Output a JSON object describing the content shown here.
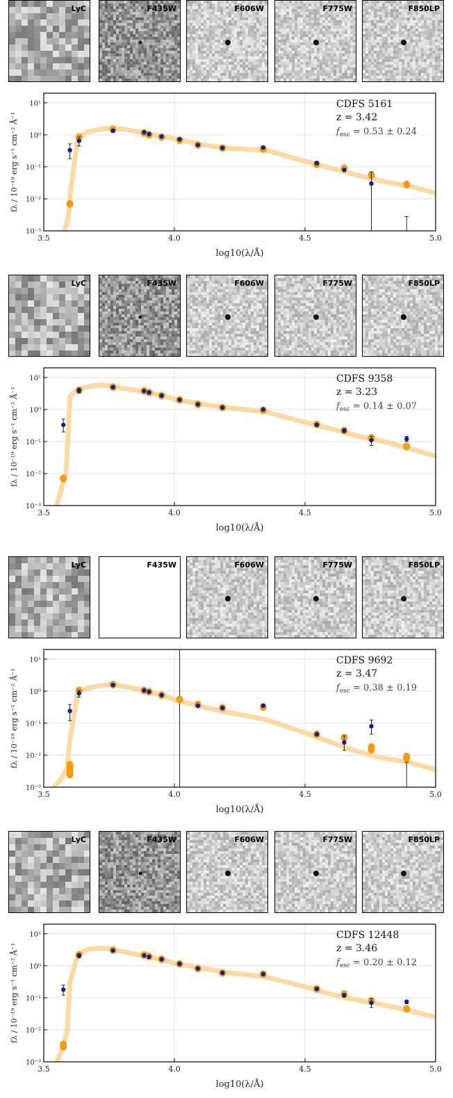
{
  "chart_data": [
    {
      "type": "scatter",
      "stamps": [
        "LyC",
        "F435W",
        "F606W",
        "F775W",
        "F850LP"
      ],
      "blank_stamps": [],
      "annotation": {
        "name": "CDFS 5161",
        "z": "z = 3.42",
        "fesc": "0.53 ± 0.24"
      },
      "xlabel": "log10(λ/Å)",
      "ylabel": "fλ / 10⁻¹⁹ erg s⁻¹ cm⁻² Å⁻¹",
      "xlim": [
        3.5,
        5.0
      ],
      "ylim_log10": [
        -3,
        1.3
      ],
      "x_ticks": [
        "3.5",
        "4.0",
        "4.5",
        "5.0"
      ],
      "y_ticks": [
        "10⁻³",
        "10⁻²",
        "10⁻¹",
        "10⁰",
        "10¹"
      ],
      "grid": true,
      "model": {
        "x": [
          3.58,
          3.595,
          3.6,
          3.63,
          3.67,
          3.72,
          3.76,
          3.85,
          3.95,
          4.0,
          4.1,
          4.2,
          4.35,
          4.5,
          4.6,
          4.7,
          4.8,
          4.9,
          5.0
        ],
        "y": [
          0.001,
          0.003,
          0.012,
          0.8,
          1.25,
          1.5,
          1.7,
          1.3,
          0.9,
          0.75,
          0.5,
          0.38,
          0.33,
          0.15,
          0.09,
          0.055,
          0.035,
          0.025,
          0.015
        ]
      },
      "model_photometry": {
        "x": [
          3.6,
          3.635,
          3.765,
          3.884,
          3.903,
          3.951,
          4.02,
          4.09,
          4.184,
          4.34,
          4.545,
          4.65,
          4.754,
          4.889
        ],
        "y": [
          0.007,
          0.85,
          1.45,
          1.15,
          1.0,
          0.85,
          0.68,
          0.48,
          0.39,
          0.36,
          0.12,
          0.09,
          0.055,
          0.028
        ]
      },
      "observed": {
        "x": [
          3.6,
          3.635,
          3.765,
          3.884,
          3.903,
          3.951,
          4.02,
          4.09,
          4.184,
          4.34,
          4.545,
          4.65,
          4.754
        ],
        "y": [
          0.33,
          0.65,
          1.35,
          1.2,
          1.05,
          0.88,
          0.72,
          0.48,
          0.39,
          0.4,
          0.13,
          0.08,
          0.03
        ],
        "err_lo": [
          0.18,
          0.45,
          1.25,
          1.1,
          0.97,
          0.82,
          0.66,
          0.44,
          0.36,
          0.37,
          0.115,
          0.07,
          0.001
        ],
        "err_hi": [
          0.52,
          0.85,
          1.45,
          1.3,
          1.13,
          0.94,
          0.78,
          0.52,
          0.42,
          0.43,
          0.145,
          0.09,
          0.07
        ]
      },
      "upper_limits": [
        {
          "x": 4.889,
          "lo": 0.001,
          "hi": 0.0028
        }
      ]
    },
    {
      "type": "scatter",
      "stamps": [
        "LyC",
        "F435W",
        "F606W",
        "F775W",
        "F850LP"
      ],
      "blank_stamps": [],
      "annotation": {
        "name": "CDFS 9358",
        "z": "z = 3.23",
        "fesc": "0.14 ± 0.07"
      },
      "xlabel": "log10(λ/Å)",
      "ylabel": "fλ / 10⁻¹⁹ erg s⁻¹ cm⁻² Å⁻¹",
      "xlim": [
        3.5,
        5.0
      ],
      "ylim_log10": [
        -3,
        1.3
      ],
      "x_ticks": [
        "3.5",
        "4.0",
        "4.5",
        "5.0"
      ],
      "y_ticks": [
        "10⁻³",
        "10⁻²",
        "10⁻¹",
        "10⁰",
        "10¹"
      ],
      "grid": true,
      "model": {
        "x": [
          3.55,
          3.57,
          3.585,
          3.595,
          3.6,
          3.63,
          3.67,
          3.72,
          3.76,
          3.85,
          3.95,
          4.0,
          4.1,
          4.2,
          4.35,
          4.5,
          4.6,
          4.7,
          4.8,
          4.9,
          5.0
        ],
        "y": [
          0.001,
          0.004,
          0.01,
          0.3,
          2.5,
          4.2,
          5.2,
          5.8,
          5.3,
          4.0,
          2.8,
          2.1,
          1.5,
          1.15,
          0.85,
          0.4,
          0.25,
          0.15,
          0.1,
          0.06,
          0.035
        ]
      },
      "model_photometry": {
        "x": [
          3.575,
          3.635,
          3.765,
          3.884,
          3.903,
          3.951,
          4.02,
          4.09,
          4.184,
          4.34,
          4.545,
          4.65,
          4.754,
          4.889
        ],
        "y": [
          0.007,
          4.0,
          5.0,
          3.8,
          3.4,
          2.7,
          2.0,
          1.45,
          1.15,
          0.95,
          0.34,
          0.22,
          0.13,
          0.07
        ]
      },
      "observed": {
        "x": [
          3.575,
          3.635,
          3.765,
          3.884,
          3.903,
          3.951,
          4.02,
          4.09,
          4.184,
          4.34,
          4.545,
          4.65,
          4.754,
          4.889
        ],
        "y": [
          0.33,
          3.9,
          5.0,
          3.8,
          3.4,
          2.7,
          2.0,
          1.45,
          1.15,
          1.0,
          0.33,
          0.22,
          0.11,
          0.12
        ],
        "err_lo": [
          0.2,
          3.3,
          4.6,
          3.5,
          3.1,
          2.5,
          1.85,
          1.35,
          1.07,
          0.9,
          0.3,
          0.19,
          0.075,
          0.1
        ],
        "err_hi": [
          0.5,
          4.6,
          5.4,
          4.1,
          3.7,
          2.9,
          2.15,
          1.55,
          1.23,
          1.1,
          0.36,
          0.25,
          0.145,
          0.145
        ]
      },
      "upper_limits": []
    },
    {
      "type": "scatter",
      "stamps": [
        "LyC",
        "F435W",
        "F606W",
        "F775W",
        "F850LP"
      ],
      "blank_stamps": [
        "F435W"
      ],
      "annotation": {
        "name": "CDFS 9692",
        "z": "z = 3.47",
        "fesc": "0.38 ± 0.19"
      },
      "xlabel": "log10(λ/Å)",
      "ylabel": "fλ / 10⁻¹⁹ erg s⁻¹ cm⁻² Å⁻¹",
      "xlim": [
        3.5,
        5.0
      ],
      "ylim_log10": [
        -3,
        1.3
      ],
      "x_ticks": [
        "3.5",
        "4.0",
        "4.5",
        "5.0"
      ],
      "y_ticks": [
        "10⁻³",
        "10⁻²",
        "10⁻¹",
        "10⁰",
        "10¹"
      ],
      "grid": true,
      "model": {
        "x": [
          3.54,
          3.57,
          3.59,
          3.6,
          3.63,
          3.67,
          3.72,
          3.76,
          3.85,
          3.95,
          4.0,
          4.1,
          4.2,
          4.35,
          4.5,
          4.6,
          4.7,
          4.8,
          4.9,
          5.0
        ],
        "y": [
          0.001,
          0.002,
          0.004,
          0.03,
          0.95,
          1.25,
          1.5,
          1.65,
          1.2,
          0.75,
          0.55,
          0.33,
          0.22,
          0.13,
          0.05,
          0.025,
          0.013,
          0.008,
          0.006,
          0.0035
        ]
      },
      "model_photometry": {
        "x": [
          3.6,
          3.6,
          3.6,
          3.6,
          3.635,
          3.765,
          3.884,
          3.903,
          3.951,
          4.02,
          4.09,
          4.184,
          4.34,
          4.545,
          4.65,
          4.754,
          4.754,
          4.889,
          4.889
        ],
        "y": [
          0.003,
          0.004,
          0.005,
          0.0025,
          1.05,
          1.6,
          1.05,
          0.95,
          0.75,
          0.55,
          0.38,
          0.3,
          0.32,
          0.045,
          0.035,
          0.015,
          0.018,
          0.008,
          0.009
        ]
      },
      "observed": {
        "x": [
          3.6,
          3.635,
          3.765,
          3.884,
          3.903,
          3.951,
          4.09,
          4.184,
          4.34,
          4.545,
          4.65,
          4.754
        ],
        "y": [
          0.24,
          0.85,
          1.55,
          1.05,
          0.95,
          0.75,
          0.35,
          0.3,
          0.35,
          0.045,
          0.025,
          0.08
        ],
        "err_lo": [
          0.12,
          0.65,
          1.45,
          0.98,
          0.88,
          0.7,
          0.32,
          0.27,
          0.32,
          0.04,
          0.014,
          0.045
        ],
        "err_hi": [
          0.38,
          1.05,
          1.65,
          1.12,
          1.02,
          0.8,
          0.38,
          0.33,
          0.38,
          0.05,
          0.04,
          0.125
        ]
      },
      "upper_limits": [
        {
          "x": 4.02,
          "lo": 0.001,
          "hi": 20
        },
        {
          "x": 4.889,
          "lo": 0.001,
          "hi": 0.006
        }
      ]
    },
    {
      "type": "scatter",
      "stamps": [
        "LyC",
        "F435W",
        "F606W",
        "F775W",
        "F850LP"
      ],
      "blank_stamps": [],
      "annotation": {
        "name": "CDFS 12448",
        "z": "z = 3.46",
        "fesc": "0.20 ± 0.12"
      },
      "xlabel": "log10(λ/Å)",
      "ylabel": "fλ / 10⁻¹⁹ erg s⁻¹ cm⁻² Å⁻¹",
      "xlim": [
        3.5,
        5.0
      ],
      "ylim_log10": [
        -3,
        1.3
      ],
      "x_ticks": [
        "3.5",
        "4.0",
        "4.5",
        "5.0"
      ],
      "y_ticks": [
        "10⁻³",
        "10⁻²",
        "10⁻¹",
        "10⁰",
        "10¹"
      ],
      "grid": true,
      "model": {
        "x": [
          3.55,
          3.575,
          3.59,
          3.6,
          3.63,
          3.67,
          3.72,
          3.76,
          3.85,
          3.95,
          4.0,
          4.1,
          4.2,
          4.35,
          4.5,
          4.6,
          4.7,
          4.8,
          4.9,
          5.0
        ],
        "y": [
          0.001,
          0.003,
          0.01,
          0.3,
          2.2,
          3.3,
          3.6,
          3.3,
          2.3,
          1.6,
          1.2,
          0.85,
          0.62,
          0.45,
          0.22,
          0.13,
          0.085,
          0.06,
          0.04,
          0.025
        ]
      },
      "model_photometry": {
        "x": [
          3.575,
          3.575,
          3.635,
          3.765,
          3.884,
          3.903,
          3.951,
          4.02,
          4.09,
          4.184,
          4.34,
          4.545,
          4.65,
          4.754,
          4.889
        ],
        "y": [
          0.003,
          0.0035,
          2.2,
          3.1,
          2.15,
          1.95,
          1.6,
          1.15,
          0.82,
          0.6,
          0.55,
          0.19,
          0.13,
          0.08,
          0.045
        ]
      },
      "observed": {
        "x": [
          3.575,
          3.635,
          3.765,
          3.884,
          3.903,
          3.951,
          4.02,
          4.09,
          4.184,
          4.34,
          4.545,
          4.65,
          4.754,
          4.889
        ],
        "y": [
          0.18,
          2.1,
          3.0,
          2.1,
          1.9,
          1.6,
          1.15,
          0.82,
          0.6,
          0.55,
          0.19,
          0.12,
          0.07,
          0.075
        ],
        "err_lo": [
          0.12,
          1.8,
          2.8,
          1.95,
          1.8,
          1.5,
          1.08,
          0.77,
          0.56,
          0.5,
          0.17,
          0.105,
          0.05,
          0.065
        ],
        "err_hi": [
          0.25,
          2.4,
          3.2,
          2.25,
          2.0,
          1.7,
          1.22,
          0.87,
          0.64,
          0.6,
          0.21,
          0.135,
          0.095,
          0.085
        ]
      },
      "upper_limits": []
    }
  ],
  "colors": {
    "model": "#fcd9a2",
    "model_photometry": "#f39c12",
    "observed": "#0a1f9e",
    "grid": "#d8d8d8"
  }
}
